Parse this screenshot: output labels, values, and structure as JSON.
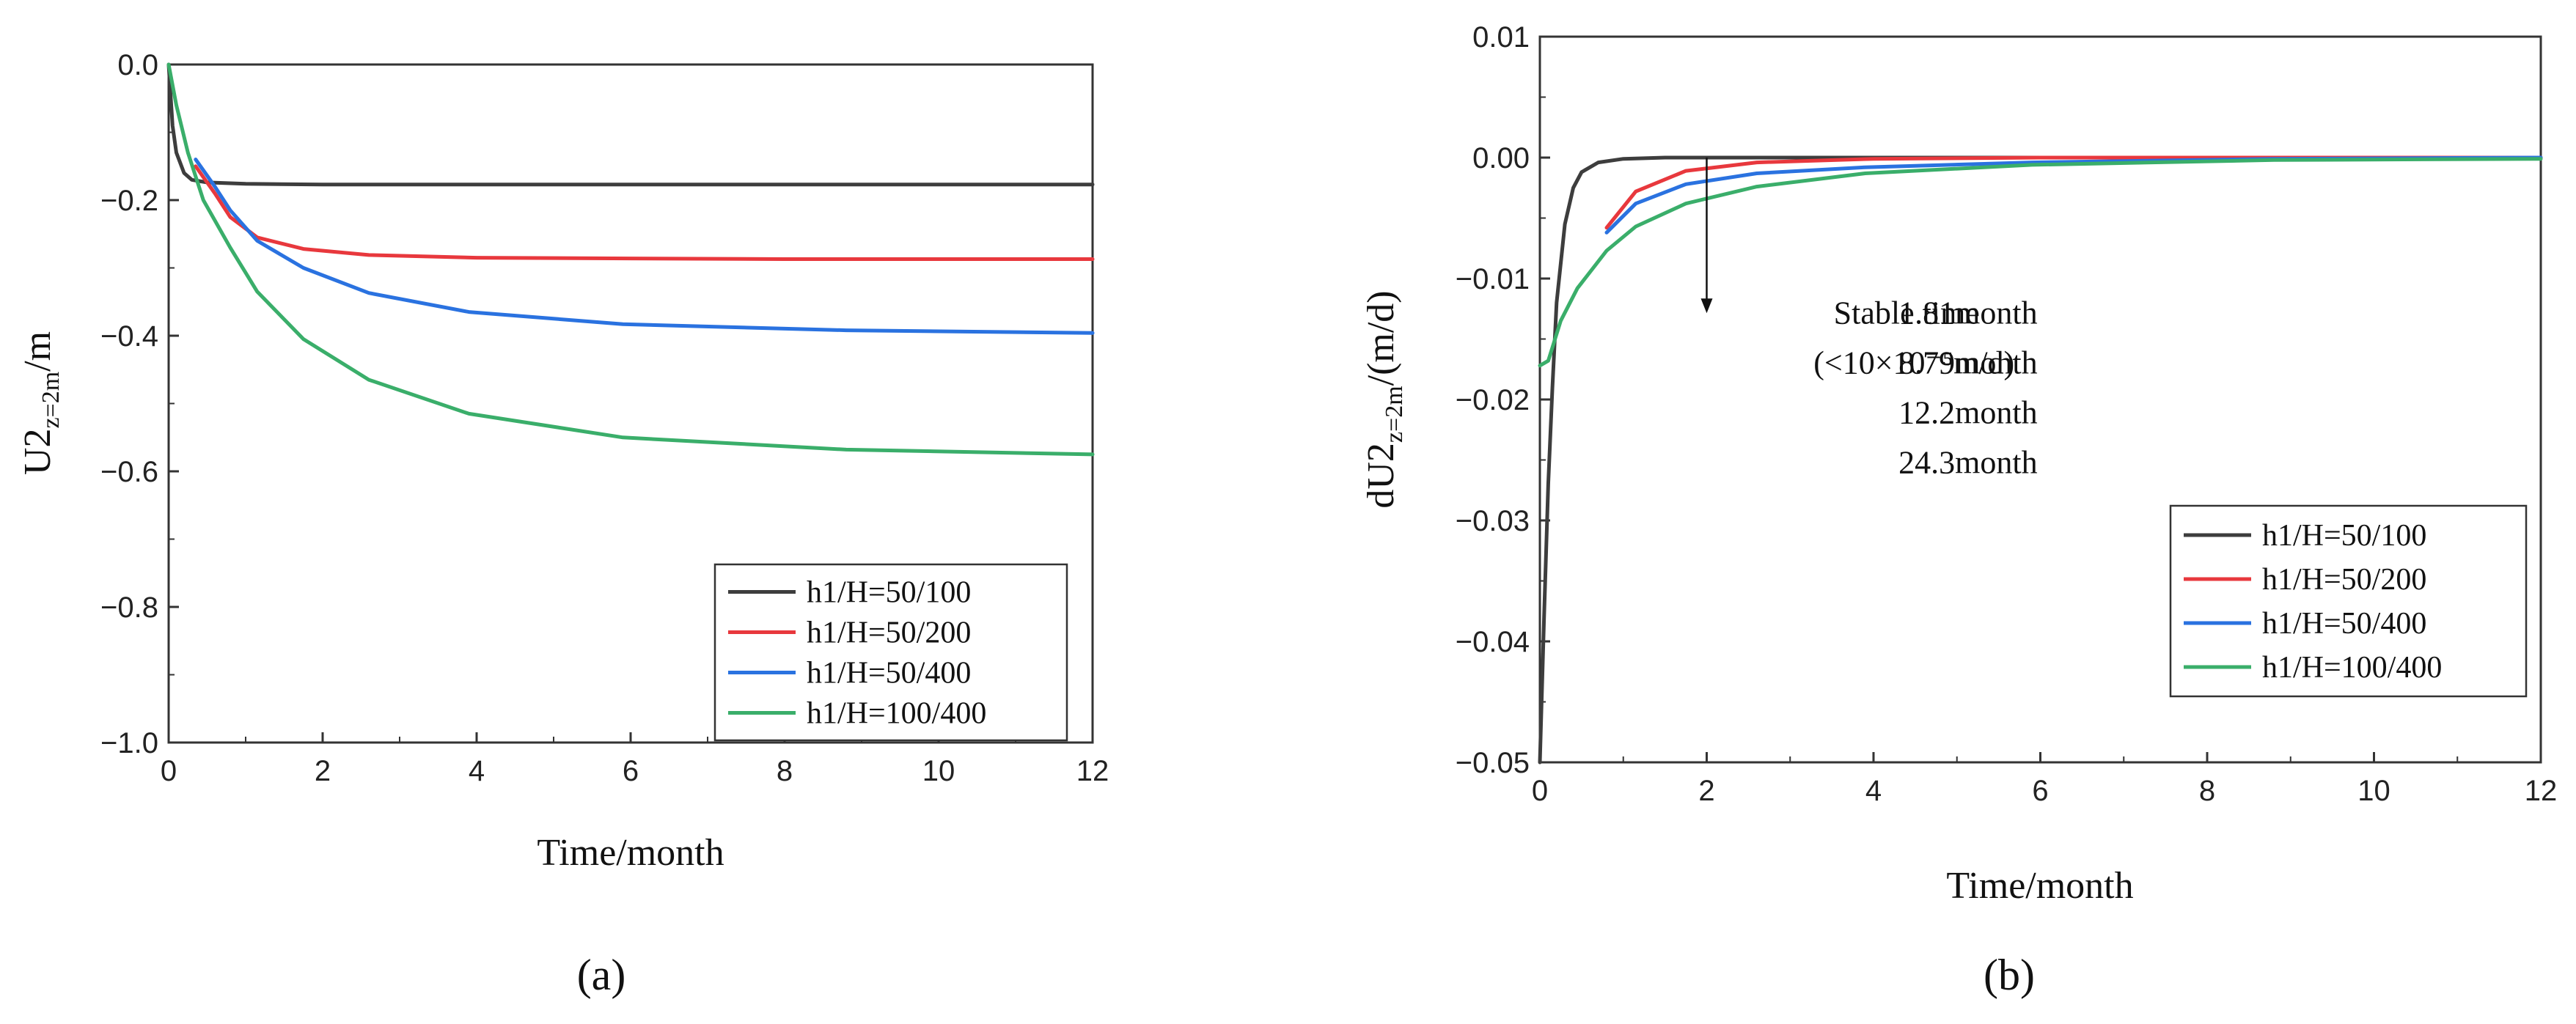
{
  "chart_data": [
    {
      "type": "line",
      "caption": "(a)",
      "xlabel": "Time/month",
      "ylabel": {
        "main": "U2",
        "sub": "z=2m",
        "suffix": "/m"
      },
      "xlim": [
        0,
        12
      ],
      "ylim": [
        -1.0,
        0.0
      ],
      "xticks": [
        0,
        2,
        4,
        6,
        8,
        10,
        12
      ],
      "xtick_labels": [
        "0",
        "2",
        "4",
        "6",
        "8",
        "10",
        "12"
      ],
      "yticks": [
        -1.0,
        -0.8,
        -0.6,
        -0.4,
        -0.2,
        0.0
      ],
      "ytick_labels": [
        "−1.0",
        "−0.8",
        "−0.6",
        "−0.4",
        "−0.2",
        "0.0"
      ],
      "grid": false,
      "legend_position": "lower-right",
      "series": [
        {
          "name": "h1/H=50/100",
          "color": "#3d3d3d",
          "x": [
            0,
            0.05,
            0.1,
            0.2,
            0.3,
            0.4,
            0.5,
            1,
            2,
            4,
            6,
            8,
            10,
            12
          ],
          "y": [
            0,
            -0.09,
            -0.13,
            -0.16,
            -0.17,
            -0.172,
            -0.174,
            -0.176,
            -0.177,
            -0.177,
            -0.177,
            -0.177,
            -0.177,
            -0.177
          ]
        },
        {
          "name": "h1/H=50/200",
          "color": "#e8383d",
          "x": [
            0.35,
            0.6,
            0.8,
            1.15,
            1.75,
            2.6,
            4,
            6,
            8,
            10,
            12
          ],
          "y": [
            -0.15,
            -0.19,
            -0.225,
            -0.255,
            -0.272,
            -0.281,
            -0.285,
            -0.286,
            -0.287,
            -0.287,
            -0.287
          ]
        },
        {
          "name": "h1/H=50/400",
          "color": "#2a72e0",
          "x": [
            0.35,
            0.6,
            0.8,
            1.15,
            1.75,
            2.6,
            3.9,
            5.9,
            8.8,
            12
          ],
          "y": [
            -0.14,
            -0.18,
            -0.215,
            -0.26,
            -0.3,
            -0.337,
            -0.365,
            -0.383,
            -0.392,
            -0.396
          ]
        },
        {
          "name": "h1/H=100/400",
          "color": "#3aae6a",
          "x": [
            0,
            0.1,
            0.25,
            0.45,
            0.8,
            1.15,
            1.75,
            2.6,
            3.9,
            5.9,
            8.8,
            12
          ],
          "y": [
            0,
            -0.06,
            -0.13,
            -0.2,
            -0.27,
            -0.335,
            -0.405,
            -0.465,
            -0.515,
            -0.55,
            -0.568,
            -0.575
          ]
        }
      ]
    },
    {
      "type": "line",
      "caption": "(b)",
      "xlabel": "Time/month",
      "ylabel": {
        "prefix": "dU2",
        "sub": "z=2m",
        "suffix": "/(m/d)"
      },
      "xlim": [
        0,
        12
      ],
      "ylim": [
        -0.05,
        0.01
      ],
      "xticks": [
        0,
        2,
        4,
        6,
        8,
        10,
        12
      ],
      "xtick_labels": [
        "0",
        "2",
        "4",
        "6",
        "8",
        "10",
        "12"
      ],
      "yticks": [
        -0.05,
        -0.04,
        -0.03,
        -0.02,
        -0.01,
        0.0,
        0.01
      ],
      "ytick_labels": [
        "−0.05",
        "−0.04",
        "−0.03",
        "−0.02",
        "−0.01",
        "0.00",
        "0.01"
      ],
      "grid": false,
      "legend_position": "lower-right",
      "annotation": {
        "title_lines": [
          "Stable time",
          "(<10×10⁻⁵m/d)"
        ],
        "values": [
          "1.81month",
          "8.79month",
          "12.2month",
          "24.3month"
        ],
        "arrow_x": 2.0,
        "arrow_y_start": 0.0,
        "arrow_y_end": -0.0125
      },
      "series": [
        {
          "name": "h1/H=50/100",
          "color": "#3d3d3d",
          "x": [
            0,
            0.05,
            0.1,
            0.15,
            0.2,
            0.3,
            0.4,
            0.5,
            0.7,
            1.0,
            1.5,
            2,
            4,
            6,
            8,
            10,
            12
          ],
          "y": [
            -0.05,
            -0.038,
            -0.027,
            -0.019,
            -0.012,
            -0.0055,
            -0.0025,
            -0.0012,
            -0.0004,
            -0.0001,
            0,
            0,
            0,
            0,
            0,
            0,
            0
          ]
        },
        {
          "name": "h1/H=50/200",
          "color": "#e8383d",
          "x": [
            0.8,
            1.15,
            1.75,
            2.6,
            4,
            6,
            8,
            10,
            12
          ],
          "y": [
            -0.0058,
            -0.0028,
            -0.0011,
            -0.0004,
            -0.0001,
            0,
            0,
            0,
            0
          ]
        },
        {
          "name": "h1/H=50/400",
          "color": "#2a72e0",
          "x": [
            0.8,
            1.15,
            1.75,
            2.6,
            3.9,
            5.9,
            8.8,
            12
          ],
          "y": [
            -0.0062,
            -0.0038,
            -0.0022,
            -0.0013,
            -0.0008,
            -0.0004,
            -0.0001,
            0
          ]
        },
        {
          "name": "h1/H=100/400",
          "color": "#3aae6a",
          "x": [
            0,
            0.1,
            0.25,
            0.45,
            0.8,
            1.15,
            1.75,
            2.6,
            3.9,
            5.9,
            8.8,
            12
          ],
          "y": [
            -0.0172,
            -0.0168,
            -0.0135,
            -0.0108,
            -0.0077,
            -0.0057,
            -0.0038,
            -0.0024,
            -0.0013,
            -0.0006,
            -0.0002,
            -0.0001
          ]
        }
      ]
    }
  ]
}
